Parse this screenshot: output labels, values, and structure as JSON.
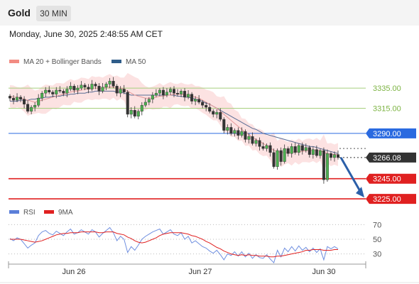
{
  "header": {
    "title": "Gold",
    "timeframe": "30 MIN",
    "timestamp": "Monday, June 30, 2025 2:48:55 AM CET"
  },
  "chart_data": [
    {
      "type": "line",
      "subtype": "candlestick",
      "legend": [
        {
          "name": "MA 20 + Bollinger Bands",
          "color": "#f28b82"
        },
        {
          "name": "MA 50",
          "color": "#2f5d8a"
        }
      ],
      "legend_placement": "top-left",
      "y_axis_side": "right",
      "ylim": [
        3218,
        3352
      ],
      "x_labels": [
        "Jun 26",
        "Jun 27",
        "Jun 30"
      ],
      "levels": [
        {
          "label": "3335.00",
          "value": 3335,
          "type": "resistance",
          "color": "#a6cf7e"
        },
        {
          "label": "3315.00",
          "value": 3315,
          "type": "resistance",
          "color": "#a6cf7e"
        },
        {
          "label": "3290.00",
          "value": 3290,
          "type": "pivot",
          "color": "#2a6ae0"
        },
        {
          "label": "3266.08",
          "value": 3266.08,
          "type": "last_price",
          "color": "#333333"
        },
        {
          "label": "3245.00",
          "value": 3245,
          "type": "support",
          "color": "#e02020"
        },
        {
          "label": "3225.00",
          "value": 3225,
          "type": "support",
          "color": "#e02020"
        }
      ],
      "last_price": 3266.08,
      "close_series": [
        3325,
        3323,
        3326,
        3324,
        3319,
        3312,
        3316,
        3318,
        3325,
        3330,
        3333,
        3331,
        3329,
        3333,
        3332,
        3330,
        3334,
        3337,
        3333,
        3335,
        3338,
        3336,
        3334,
        3339,
        3337,
        3332,
        3336,
        3339,
        3342,
        3337,
        3330,
        3334,
        3331,
        3309,
        3313,
        3307,
        3312,
        3318,
        3321,
        3324,
        3328,
        3330,
        3333,
        3328,
        3331,
        3334,
        3330,
        3329,
        3332,
        3326,
        3329,
        3322,
        3324,
        3321,
        3318,
        3316,
        3312,
        3309,
        3311,
        3304,
        3293,
        3296,
        3290,
        3293,
        3288,
        3292,
        3284,
        3287,
        3280,
        3283,
        3277,
        3275,
        3278,
        3271,
        3257,
        3273,
        3262,
        3275,
        3270,
        3277,
        3271,
        3278,
        3273,
        3276,
        3269,
        3274,
        3268,
        3273,
        3244,
        3270,
        3266,
        3269,
        3266
      ],
      "ma20": [
        3327,
        3326,
        3326,
        3325,
        3324,
        3323,
        3322,
        3321,
        3322,
        3323,
        3324,
        3325,
        3326,
        3327,
        3328,
        3329,
        3330,
        3331,
        3332,
        3332,
        3333,
        3334,
        3334,
        3335,
        3335,
        3335,
        3335,
        3336,
        3336,
        3336,
        3335,
        3335,
        3334,
        3332,
        3330,
        3328,
        3327,
        3326,
        3325,
        3325,
        3325,
        3326,
        3327,
        3327,
        3328,
        3328,
        3329,
        3329,
        3329,
        3328,
        3328,
        3327,
        3326,
        3325,
        3323,
        3321,
        3319,
        3317,
        3315,
        3312,
        3309,
        3306,
        3303,
        3300,
        3297,
        3294,
        3291,
        3289,
        3286,
        3284,
        3282,
        3280,
        3278,
        3276,
        3273,
        3272,
        3271,
        3271,
        3271,
        3271,
        3272,
        3272,
        3272,
        3273,
        3273,
        3273,
        3273,
        3273,
        3271,
        3270,
        3269,
        3269,
        3269
      ],
      "ma50": [
        3322,
        3322,
        3322,
        3323,
        3323,
        3323,
        3324,
        3324,
        3325,
        3325,
        3326,
        3326,
        3327,
        3327,
        3327,
        3328,
        3328,
        3329,
        3329,
        3330,
        3330,
        3330,
        3331,
        3331,
        3332,
        3332,
        3332,
        3332,
        3332,
        3332,
        3331,
        3331,
        3330,
        3329,
        3328,
        3328,
        3328,
        3328,
        3328,
        3328,
        3328,
        3328,
        3328,
        3328,
        3328,
        3328,
        3328,
        3327,
        3327,
        3326,
        3326,
        3325,
        3324,
        3323,
        3322,
        3320,
        3319,
        3317,
        3315,
        3313,
        3311,
        3309,
        3307,
        3305,
        3303,
        3301,
        3299,
        3297,
        3295,
        3294,
        3292,
        3290,
        3289,
        3288,
        3287,
        3286,
        3285,
        3284,
        3283,
        3282,
        3281,
        3280,
        3279,
        3278,
        3277,
        3277,
        3276,
        3275,
        3274,
        3273,
        3272,
        3271,
        3270
      ],
      "forecast": {
        "from": 3266.08,
        "to": 3225
      }
    },
    {
      "type": "line",
      "legend": [
        {
          "name": "RSI",
          "color": "#5b7fd9"
        },
        {
          "name": "9MA",
          "color": "#e02020"
        }
      ],
      "legend_placement": "top-left",
      "ylim": [
        20,
        80
      ],
      "y_ticks": [
        {
          "label": "70",
          "value": 70
        },
        {
          "label": "50",
          "value": 50
        },
        {
          "label": "30",
          "value": 30
        }
      ],
      "rsi": [
        51,
        48,
        52,
        50,
        44,
        38,
        42,
        45,
        55,
        60,
        62,
        58,
        56,
        61,
        58,
        55,
        60,
        64,
        57,
        59,
        63,
        60,
        57,
        63,
        60,
        53,
        58,
        62,
        66,
        59,
        48,
        54,
        50,
        32,
        40,
        35,
        42,
        50,
        54,
        57,
        60,
        62,
        64,
        57,
        60,
        63,
        57,
        55,
        59,
        50,
        54,
        45,
        48,
        44,
        40,
        38,
        34,
        31,
        35,
        29,
        22,
        30,
        28,
        33,
        27,
        33,
        26,
        31,
        24,
        29,
        25,
        24,
        29,
        23,
        18,
        35,
        26,
        38,
        33,
        40,
        34,
        41,
        35,
        39,
        33,
        38,
        32,
        37,
        22,
        40,
        37,
        40,
        37
      ],
      "ma9": [
        50,
        50,
        50,
        50,
        49,
        48,
        47,
        46,
        47,
        48,
        50,
        52,
        54,
        56,
        57,
        58,
        58,
        59,
        59,
        59,
        60,
        60,
        60,
        60,
        60,
        59,
        59,
        60,
        60,
        60,
        58,
        57,
        56,
        53,
        51,
        48,
        46,
        45,
        46,
        48,
        50,
        52,
        55,
        57,
        58,
        59,
        59,
        59,
        59,
        58,
        57,
        55,
        54,
        52,
        50,
        47,
        45,
        42,
        39,
        37,
        34,
        32,
        30,
        29,
        28,
        29,
        28,
        29,
        28,
        28,
        27,
        27,
        27,
        26,
        26,
        27,
        27,
        28,
        29,
        30,
        31,
        32,
        33,
        35,
        35,
        36,
        36,
        36,
        35,
        35,
        35,
        36,
        36
      ]
    }
  ]
}
